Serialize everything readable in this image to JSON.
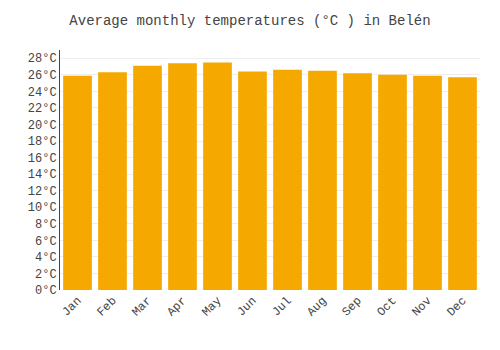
{
  "chart_data": {
    "type": "bar",
    "title": "Average monthly temperatures (°C ) in Belén",
    "categories": [
      "Jan",
      "Feb",
      "Mar",
      "Apr",
      "May",
      "Jun",
      "Jul",
      "Aug",
      "Sep",
      "Oct",
      "Nov",
      "Dec"
    ],
    "values": [
      25.9,
      26.3,
      27.1,
      27.4,
      27.5,
      26.4,
      26.6,
      26.5,
      26.2,
      26.0,
      25.9,
      25.7
    ],
    "color": "#F5A800",
    "ylim": [
      0,
      29
    ],
    "yticks": [
      {
        "value": 0,
        "label": "0°C"
      },
      {
        "value": 2,
        "label": "2°C"
      },
      {
        "value": 4,
        "label": "4°C"
      },
      {
        "value": 6,
        "label": "6°C"
      },
      {
        "value": 8,
        "label": "8°C"
      },
      {
        "value": 10,
        "label": "10°C"
      },
      {
        "value": 12,
        "label": "12°C"
      },
      {
        "value": 14,
        "label": "14°C"
      },
      {
        "value": 16,
        "label": "16°C"
      },
      {
        "value": 18,
        "label": "18°C"
      },
      {
        "value": 20,
        "label": "20°C"
      },
      {
        "value": 22,
        "label": "22°C"
      },
      {
        "value": 24,
        "label": "24°C"
      },
      {
        "value": 26,
        "label": "26°C"
      },
      {
        "value": 28,
        "label": "28°C"
      }
    ],
    "grid": true
  }
}
